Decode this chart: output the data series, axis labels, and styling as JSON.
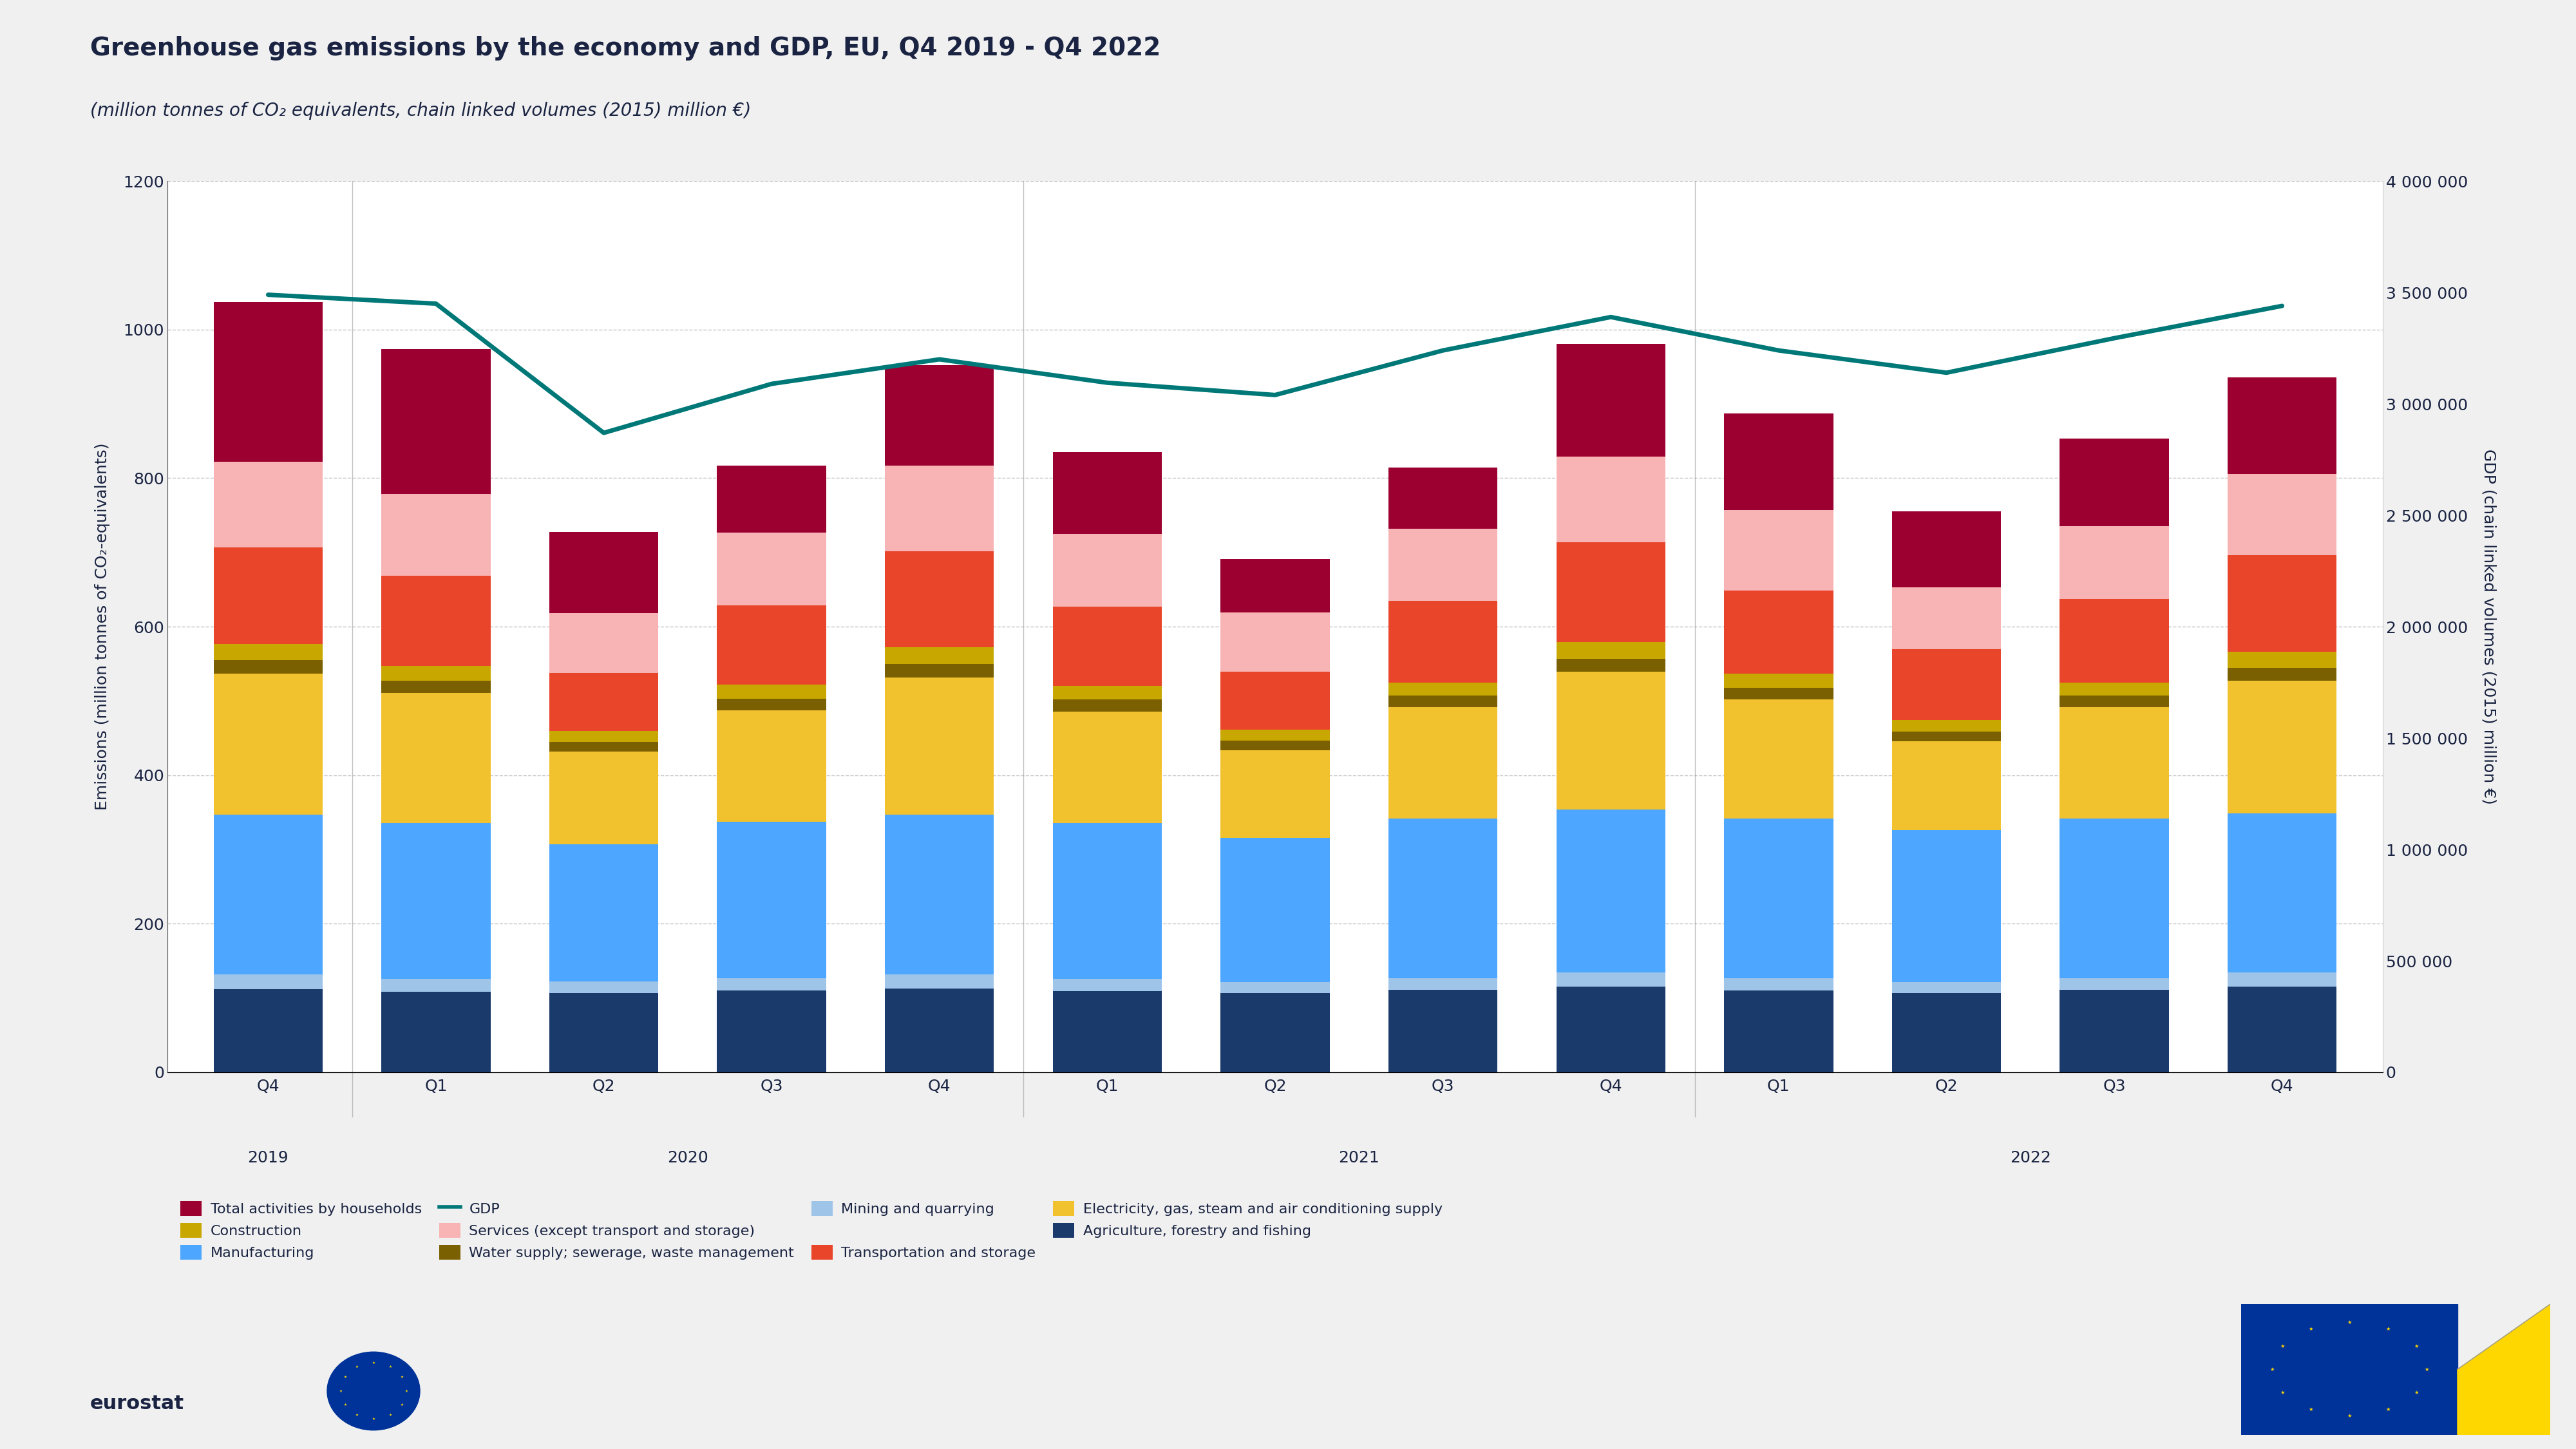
{
  "title": "Greenhouse gas emissions by the economy and GDP, EU, Q4 2019 - Q4 2022",
  "subtitle": "(million tonnes of CO₂ equivalents, chain linked volumes (2015) million €)",
  "ylabel_left": "Emissions (million tonnes of CO₂-equivalents)",
  "ylabel_right": "GDP (chain linked volumes (2015) million €)",
  "quarter_labels": [
    "Q4",
    "Q1",
    "Q2",
    "Q3",
    "Q4",
    "Q1",
    "Q2",
    "Q3",
    "Q4",
    "Q1",
    "Q2",
    "Q3",
    "Q4"
  ],
  "year_groups": [
    {
      "year": "2019",
      "positions": [
        0
      ]
    },
    {
      "year": "2020",
      "positions": [
        1,
        2,
        3,
        4
      ]
    },
    {
      "year": "2021",
      "positions": [
        5,
        6,
        7,
        8
      ]
    },
    {
      "year": "2022",
      "positions": [
        9,
        10,
        11,
        12
      ]
    }
  ],
  "segments": [
    {
      "name": "Agriculture, forestry and fishing",
      "color": "#1a3a6b",
      "values": [
        112,
        108,
        107,
        110,
        113,
        109,
        107,
        111,
        115,
        110,
        107,
        111,
        115
      ]
    },
    {
      "name": "Mining and quarrying",
      "color": "#9ec4e8",
      "values": [
        20,
        18,
        15,
        17,
        19,
        17,
        14,
        16,
        19,
        17,
        14,
        16,
        19
      ]
    },
    {
      "name": "Manufacturing",
      "color": "#4da6ff",
      "values": [
        215,
        210,
        185,
        210,
        215,
        210,
        195,
        215,
        220,
        215,
        205,
        215,
        215
      ]
    },
    {
      "name": "Electricity, gas, steam and air conditioning supply",
      "color": "#f2c12e",
      "values": [
        190,
        175,
        125,
        150,
        185,
        150,
        118,
        150,
        185,
        160,
        120,
        150,
        178
      ]
    },
    {
      "name": "Water supply; sewerage, waste management",
      "color": "#7a6000",
      "values": [
        18,
        16,
        13,
        16,
        18,
        16,
        13,
        15,
        18,
        16,
        13,
        15,
        18
      ]
    },
    {
      "name": "Construction",
      "color": "#c8a800",
      "values": [
        22,
        20,
        15,
        19,
        22,
        18,
        14,
        18,
        22,
        19,
        15,
        18,
        21
      ]
    },
    {
      "name": "Transportation and storage",
      "color": "#e8452a",
      "values": [
        130,
        122,
        78,
        107,
        130,
        107,
        78,
        110,
        135,
        112,
        96,
        112,
        130
      ]
    },
    {
      "name": "Services (except transport and storage)",
      "color": "#f8b4b4",
      "values": [
        115,
        110,
        80,
        98,
        115,
        98,
        80,
        97,
        115,
        108,
        83,
        98,
        110
      ]
    },
    {
      "name": "Total activities by households",
      "color": "#9b0030",
      "values": [
        215,
        195,
        110,
        90,
        135,
        110,
        72,
        82,
        152,
        130,
        102,
        118,
        130
      ]
    }
  ],
  "gdp": [
    3490000,
    3450000,
    2870000,
    3090000,
    3200000,
    3095000,
    3040000,
    3240000,
    3390000,
    3240000,
    3140000,
    3295000,
    3440000
  ],
  "gdp_color": "#007878",
  "plot_bg": "#ffffff",
  "fig_bg": "#f0f0f0",
  "ylim_left": [
    0,
    1200
  ],
  "ylim_right": [
    0,
    4000000
  ],
  "yticks_left": [
    0,
    200,
    400,
    600,
    800,
    1000,
    1200
  ],
  "yticks_right": [
    0,
    500000,
    1000000,
    1500000,
    2000000,
    2500000,
    3000000,
    3500000,
    4000000
  ],
  "ytick_right_labels": [
    "0",
    "500 000",
    "1 000 000",
    "1 500 000",
    "2 000 000",
    "2 500 000",
    "3 000 000",
    "3 500 000",
    "4 000 000"
  ],
  "text_color": "#1a2442",
  "title_fontsize": 28,
  "subtitle_fontsize": 20,
  "axis_label_fontsize": 18,
  "tick_fontsize": 18,
  "legend_fontsize": 16
}
